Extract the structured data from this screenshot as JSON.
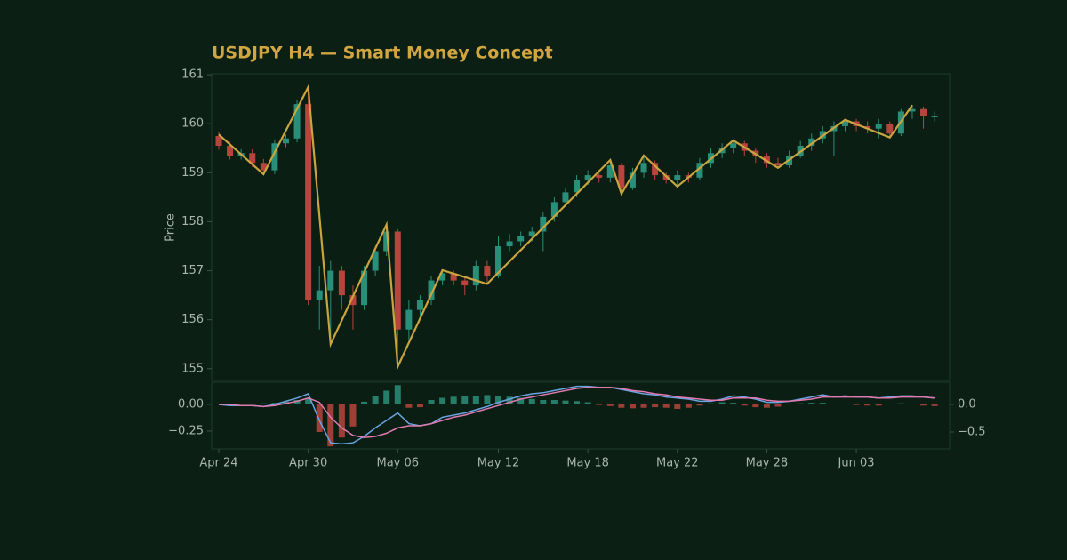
{
  "chart_data": [
    {
      "type": "candlestick",
      "title": "USDJPY H4 — Smart Money Concept",
      "ylabel": "Price",
      "ylim": [
        154.76,
        161.02
      ],
      "yticks": [
        155,
        156,
        157,
        158,
        159,
        160,
        161
      ],
      "up_color": "#2a8f78",
      "down_color": "#b8453d",
      "open": [
        159.75,
        159.55,
        159.35,
        159.4,
        159.2,
        159.05,
        159.6,
        159.7,
        160.4,
        156.4,
        156.6,
        157.0,
        156.5,
        156.3,
        157.0,
        157.4,
        157.8,
        155.8,
        156.2,
        156.4,
        156.8,
        156.95,
        156.8,
        156.7,
        157.1,
        156.9,
        157.5,
        157.6,
        157.7,
        157.8,
        158.1,
        158.4,
        158.6,
        158.85,
        158.95,
        158.9,
        159.15,
        158.7,
        159.0,
        159.2,
        158.95,
        158.85,
        158.95,
        158.9,
        159.2,
        159.4,
        159.5,
        159.6,
        159.45,
        159.35,
        159.2,
        159.15,
        159.35,
        159.55,
        159.7,
        159.85,
        159.95,
        160.05,
        159.95,
        159.9,
        160.0,
        159.8,
        160.25,
        160.3,
        160.15
      ],
      "high": [
        159.83,
        159.63,
        159.48,
        159.48,
        159.28,
        159.68,
        159.78,
        160.48,
        160.75,
        157.1,
        157.2,
        157.1,
        156.7,
        157.1,
        157.5,
        157.94,
        157.85,
        156.4,
        156.5,
        156.9,
        157.01,
        157.0,
        156.9,
        157.2,
        157.2,
        157.7,
        157.75,
        157.8,
        157.9,
        158.2,
        158.5,
        158.7,
        158.95,
        159.05,
        159.05,
        159.26,
        159.2,
        159.1,
        159.35,
        159.25,
        159.0,
        159.05,
        159.0,
        159.3,
        159.5,
        159.6,
        159.66,
        159.65,
        159.5,
        159.4,
        159.3,
        159.45,
        159.65,
        159.8,
        159.95,
        160.05,
        160.08,
        160.1,
        160.05,
        160.1,
        160.05,
        160.3,
        160.38,
        160.35,
        160.25
      ],
      "low": [
        159.47,
        159.27,
        159.27,
        159.12,
        158.97,
        158.97,
        159.52,
        159.62,
        156.3,
        155.8,
        155.5,
        156.2,
        155.8,
        156.2,
        156.9,
        157.3,
        155.04,
        155.6,
        156.0,
        156.3,
        156.7,
        156.7,
        156.5,
        156.6,
        156.73,
        156.85,
        157.4,
        157.5,
        157.6,
        157.4,
        158.0,
        158.3,
        158.5,
        158.75,
        158.8,
        158.8,
        158.57,
        158.65,
        158.9,
        158.85,
        158.78,
        158.72,
        158.8,
        158.85,
        159.1,
        159.3,
        159.4,
        159.35,
        159.2,
        159.1,
        159.1,
        159.1,
        159.3,
        159.45,
        159.6,
        159.35,
        159.85,
        159.85,
        159.8,
        159.7,
        159.72,
        159.75,
        160.1,
        159.9,
        160.05
      ],
      "close": [
        159.55,
        159.35,
        159.4,
        159.2,
        159.05,
        159.6,
        159.7,
        160.4,
        156.4,
        156.6,
        157.0,
        156.5,
        156.3,
        157.0,
        157.4,
        157.8,
        155.8,
        156.2,
        156.4,
        156.8,
        156.95,
        156.8,
        156.7,
        157.1,
        156.9,
        157.5,
        157.6,
        157.7,
        157.8,
        158.1,
        158.4,
        158.6,
        158.85,
        158.95,
        158.9,
        159.15,
        158.7,
        159.0,
        159.2,
        158.95,
        158.85,
        158.95,
        158.9,
        159.2,
        159.4,
        159.5,
        159.6,
        159.45,
        159.35,
        159.2,
        159.15,
        159.35,
        159.55,
        159.7,
        159.85,
        159.95,
        160.05,
        159.95,
        159.9,
        160.0,
        159.8,
        160.25,
        160.3,
        160.15,
        160.15
      ],
      "overlay": {
        "type": "line",
        "color": "#c9a43f",
        "x": [
          0,
          4,
          8,
          10,
          15,
          16,
          20,
          24,
          35,
          36,
          38,
          41,
          46,
          50,
          56,
          60,
          62
        ],
        "values": [
          159.78,
          158.97,
          160.75,
          155.5,
          157.94,
          155.04,
          157.01,
          156.73,
          159.26,
          158.57,
          159.35,
          158.72,
          159.66,
          159.1,
          160.08,
          159.72,
          160.38
        ]
      }
    },
    {
      "type": "macd",
      "categories": [
        "Apr 24",
        null,
        null,
        null,
        null,
        null,
        null,
        null,
        "Apr 30",
        null,
        null,
        null,
        null,
        null,
        null,
        null,
        "May 06",
        null,
        null,
        null,
        null,
        null,
        null,
        null,
        null,
        "May 12",
        null,
        null,
        null,
        null,
        null,
        null,
        null,
        "May 18",
        null,
        null,
        null,
        null,
        null,
        null,
        null,
        "May 22",
        null,
        null,
        null,
        null,
        null,
        null,
        null,
        "May 28",
        null,
        null,
        null,
        null,
        null,
        null,
        null,
        "Jun 03",
        null,
        null,
        null,
        null,
        null,
        null,
        null
      ],
      "ylim": [
        -0.417,
        0.208
      ],
      "yticks": [
        {
          "value": 0,
          "label": "0.00"
        },
        {
          "value": -0.25,
          "label": "−0.25"
        }
      ],
      "y2lim": [
        -0.806,
        0.403
      ],
      "y2ticks": [
        {
          "value": 0,
          "label": "0.0"
        },
        {
          "value": -0.5,
          "label": "−0.5"
        }
      ],
      "series": [
        {
          "type": "line",
          "color": "#6aa3e0",
          "values": [
            0,
            -0.01,
            -0.01,
            -0.01,
            -0.02,
            0,
            0.03,
            0.06,
            0.1,
            -0.15,
            -0.36,
            -0.37,
            -0.36,
            -0.3,
            -0.22,
            -0.15,
            -0.08,
            -0.18,
            -0.2,
            -0.18,
            -0.12,
            -0.1,
            -0.08,
            -0.05,
            -0.02,
            0.02,
            0.05,
            0.08,
            0.1,
            0.11,
            0.13,
            0.15,
            0.17,
            0.17,
            0.16,
            0.16,
            0.14,
            0.12,
            0.1,
            0.09,
            0.07,
            0.06,
            0.05,
            0.03,
            0.03,
            0.05,
            0.08,
            0.07,
            0.05,
            0.02,
            0.02,
            0.03,
            0.05,
            0.07,
            0.09,
            0.07,
            0.08,
            0.07,
            0.07,
            0.06,
            0.07,
            0.08,
            0.08,
            0.07,
            0.06
          ]
        },
        {
          "type": "line",
          "color": "#e27ab0",
          "values": [
            0,
            0,
            -0.01,
            -0.01,
            -0.02,
            -0.01,
            0.01,
            0.03,
            0.06,
            0.02,
            -0.12,
            -0.22,
            -0.29,
            -0.31,
            -0.3,
            -0.27,
            -0.22,
            -0.2,
            -0.2,
            -0.18,
            -0.15,
            -0.12,
            -0.1,
            -0.07,
            -0.04,
            -0.01,
            0.02,
            0.05,
            0.07,
            0.09,
            0.11,
            0.13,
            0.15,
            0.16,
            0.16,
            0.16,
            0.15,
            0.13,
            0.12,
            0.1,
            0.09,
            0.07,
            0.06,
            0.05,
            0.04,
            0.04,
            0.06,
            0.06,
            0.06,
            0.04,
            0.03,
            0.03,
            0.04,
            0.05,
            0.07,
            0.07,
            0.07,
            0.07,
            0.07,
            0.06,
            0.06,
            0.07,
            0.07,
            0.07,
            0.06
          ]
        },
        {
          "type": "histogram",
          "axis": "y2",
          "up_color": "#2a8f78",
          "down_color": "#b8453d",
          "values": [
            0,
            0.01,
            0.01,
            0.01,
            0.02,
            0.03,
            0.05,
            0.08,
            0.12,
            -0.5,
            -0.76,
            -0.6,
            -0.4,
            0.05,
            0.15,
            0.25,
            0.35,
            -0.06,
            -0.05,
            0.08,
            0.12,
            0.14,
            0.15,
            0.16,
            0.17,
            0.16,
            0.14,
            0.12,
            0.1,
            0.08,
            0.08,
            0.07,
            0.06,
            0.04,
            -0.01,
            -0.03,
            -0.06,
            -0.07,
            -0.06,
            -0.05,
            -0.06,
            -0.08,
            -0.06,
            -0.02,
            0.02,
            0.04,
            0.03,
            -0.02,
            -0.05,
            -0.06,
            -0.04,
            0.01,
            0.02,
            0.03,
            0.03,
            0.01,
            0.01,
            -0.01,
            -0.02,
            -0.02,
            0.01,
            0.02,
            0.01,
            -0.02,
            -0.03
          ]
        }
      ]
    }
  ]
}
